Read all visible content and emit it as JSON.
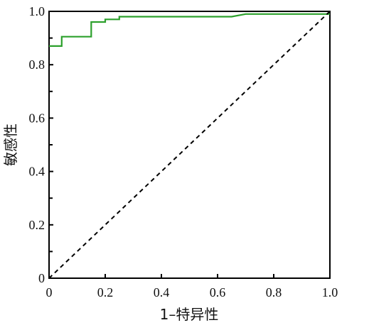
{
  "chart_data": {
    "type": "line",
    "xlabel": "1–特异性",
    "ylabel": "敏感性",
    "xlim": [
      0,
      1
    ],
    "ylim": [
      0,
      1
    ],
    "grid": false,
    "legend": "none",
    "x_ticks": [
      "0",
      "0.2",
      "0.4",
      "0.6",
      "0.8",
      "1.0"
    ],
    "y_ticks": [
      "0",
      "0.2",
      "0.4",
      "0.6",
      "0.8",
      "1.0"
    ],
    "series": [
      {
        "style": "solid-step",
        "color": "#2ca02c",
        "points": [
          [
            0,
            0.87
          ],
          [
            0.045,
            0.87
          ],
          [
            0.045,
            0.905
          ],
          [
            0.15,
            0.905
          ],
          [
            0.15,
            0.96
          ],
          [
            0.2,
            0.96
          ],
          [
            0.2,
            0.97
          ],
          [
            0.25,
            0.97
          ],
          [
            0.25,
            0.98
          ],
          [
            0.65,
            0.98
          ],
          [
            0.7,
            0.99
          ],
          [
            1.0,
            0.99
          ]
        ]
      },
      {
        "style": "dashed",
        "color": "#000000",
        "points": [
          [
            0,
            0
          ],
          [
            1,
            1
          ]
        ]
      }
    ]
  }
}
